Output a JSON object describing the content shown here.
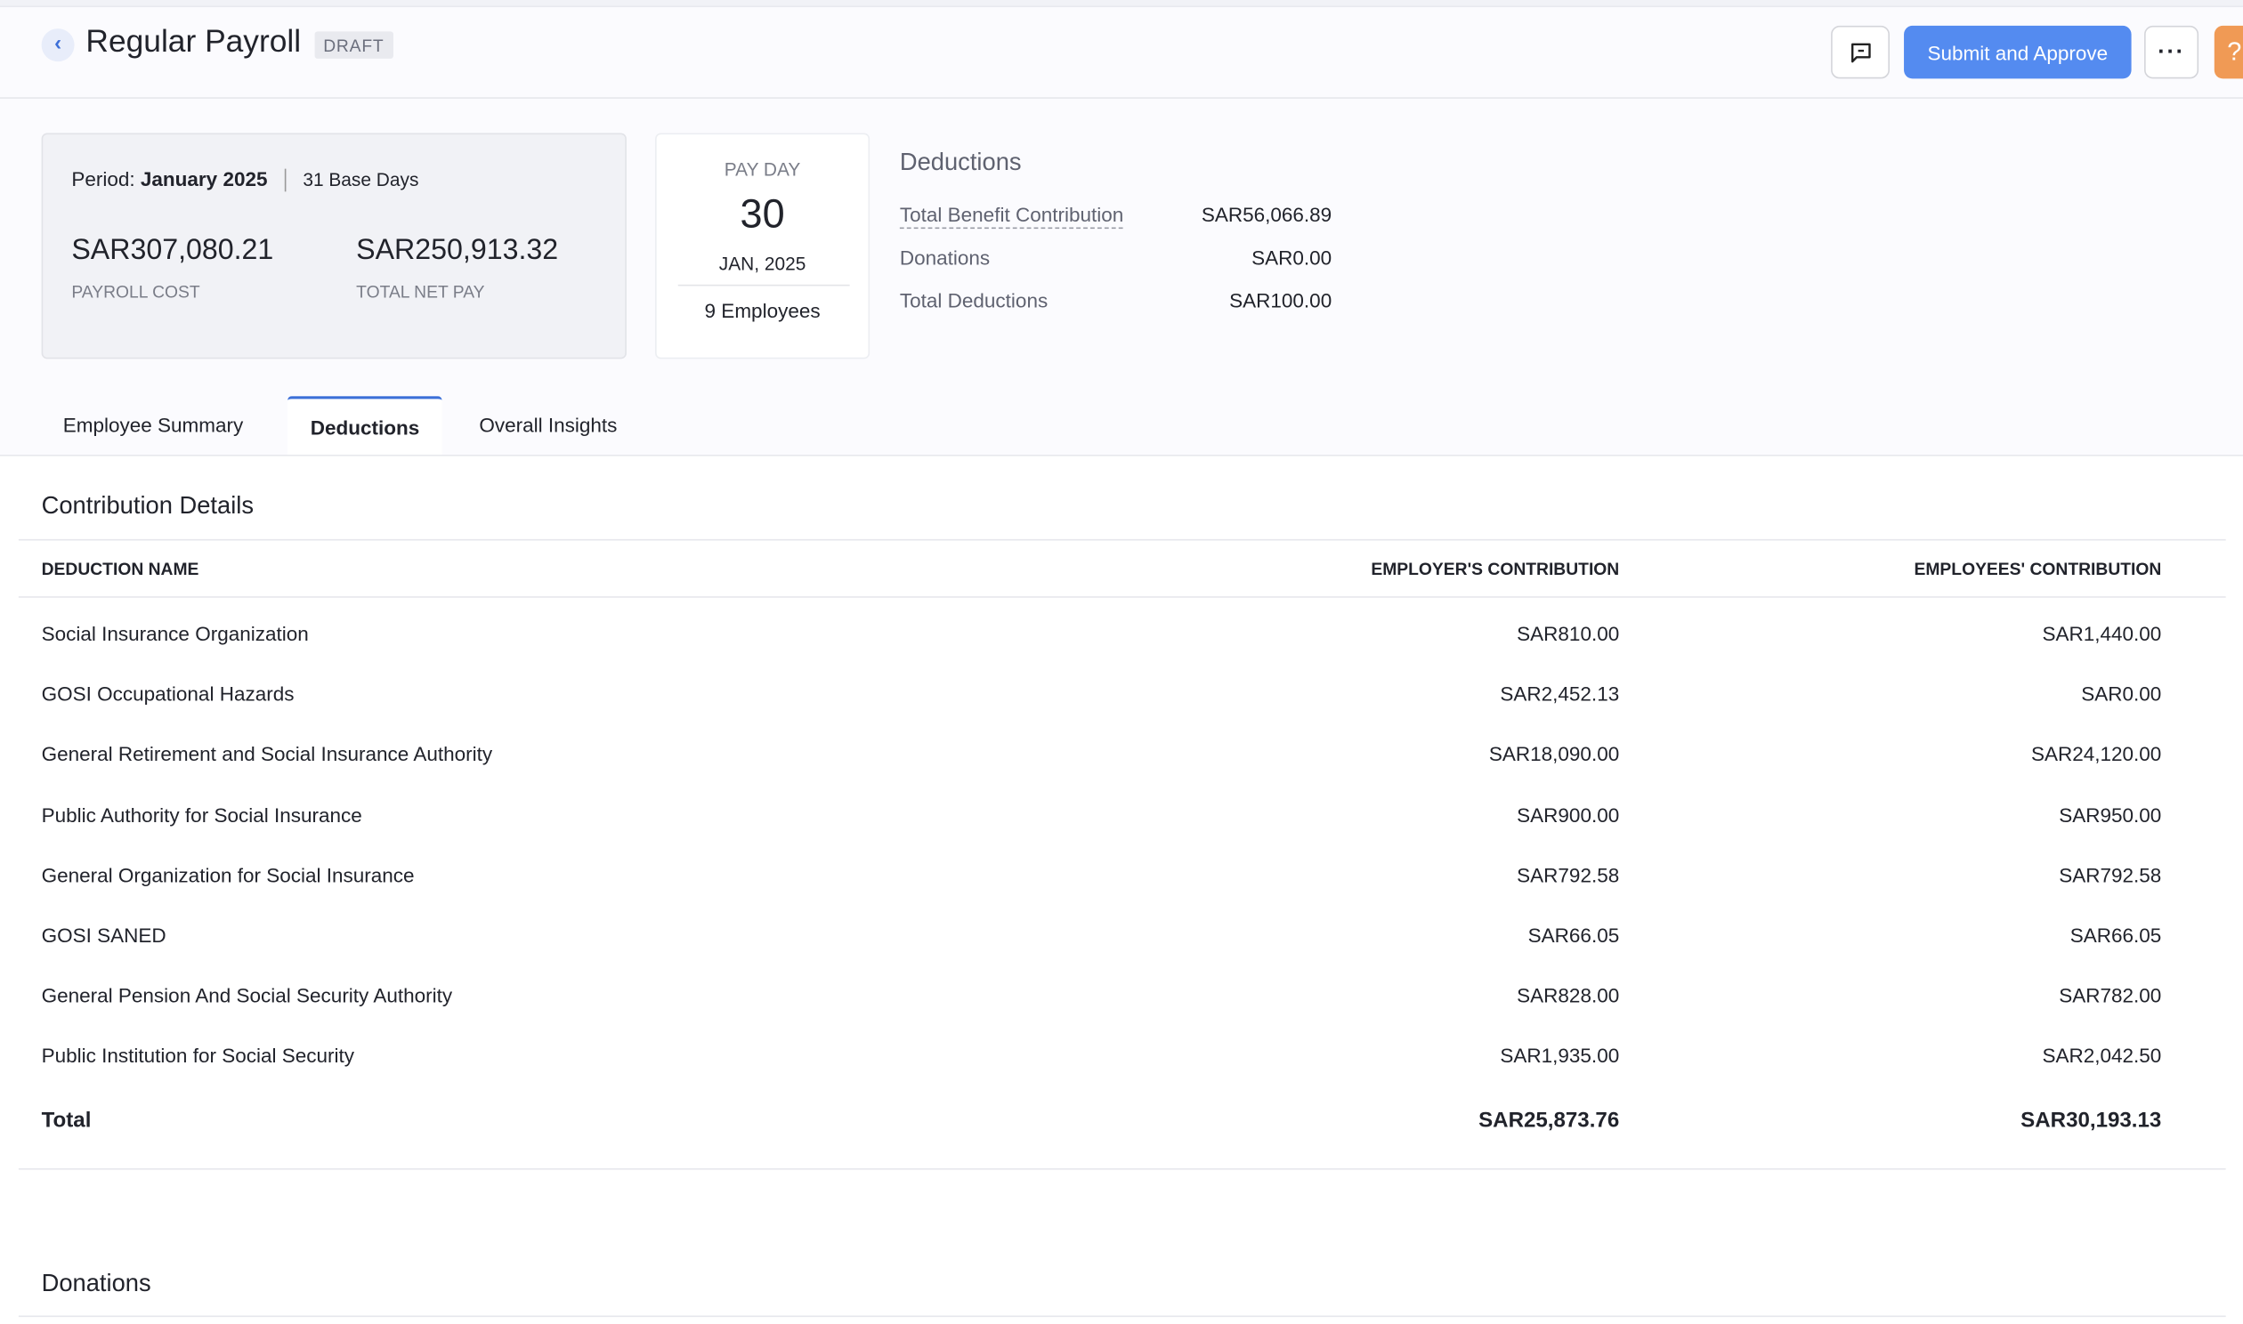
{
  "header": {
    "title": "Regular Payroll",
    "status": "DRAFT",
    "submit_label": "Submit and Approve",
    "help_label": "?"
  },
  "summary": {
    "period_label": "Period:",
    "period_value": "January 2025",
    "base_days": "31 Base Days",
    "payroll_cost": "SAR307,080.21",
    "payroll_cost_label": "PAYROLL COST",
    "net_pay": "SAR250,913.32",
    "net_pay_label": "TOTAL NET PAY"
  },
  "payday": {
    "label": "PAY DAY",
    "day": "30",
    "month_year": "JAN, 2025",
    "employees": "9 Employees"
  },
  "deductions_summary": {
    "title": "Deductions",
    "rows": [
      {
        "label": "Total Benefit Contribution",
        "value": "SAR56,066.89"
      },
      {
        "label": "Donations",
        "value": "SAR0.00"
      },
      {
        "label": "Total Deductions",
        "value": "SAR100.00"
      }
    ]
  },
  "tabs": [
    {
      "label": "Employee Summary"
    },
    {
      "label": "Deductions",
      "active": true
    },
    {
      "label": "Overall Insights"
    }
  ],
  "contribution": {
    "title": "Contribution Details",
    "columns": [
      "DEDUCTION NAME",
      "EMPLOYER'S CONTRIBUTION",
      "EMPLOYEES' CONTRIBUTION"
    ],
    "rows": [
      {
        "name": "Social Insurance Organization",
        "employer": "SAR810.00",
        "employee": "SAR1,440.00"
      },
      {
        "name": "GOSI Occupational Hazards",
        "employer": "SAR2,452.13",
        "employee": "SAR0.00"
      },
      {
        "name": "General Retirement and Social Insurance Authority",
        "employer": "SAR18,090.00",
        "employee": "SAR24,120.00"
      },
      {
        "name": "Public Authority for Social Insurance",
        "employer": "SAR900.00",
        "employee": "SAR950.00"
      },
      {
        "name": "General Organization for Social Insurance",
        "employer": "SAR792.58",
        "employee": "SAR792.58"
      },
      {
        "name": "GOSI SANED",
        "employer": "SAR66.05",
        "employee": "SAR66.05"
      },
      {
        "name": "General Pension And Social Security Authority",
        "employer": "SAR828.00",
        "employee": "SAR782.00"
      },
      {
        "name": "Public Institution for Social Security",
        "employer": "SAR1,935.00",
        "employee": "SAR2,042.50"
      }
    ],
    "total": {
      "label": "Total",
      "employer": "SAR25,873.76",
      "employee": "SAR30,193.13"
    }
  },
  "donations": {
    "title": "Donations"
  },
  "colors": {
    "primary": "#548bf0",
    "help": "#f09a55",
    "tab_active": "#3b6fd8"
  }
}
